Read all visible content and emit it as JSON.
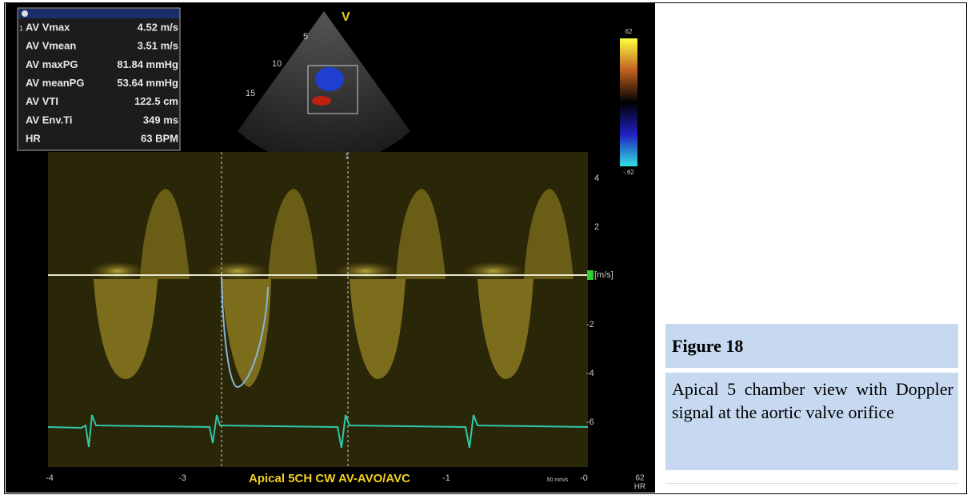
{
  "measurements": {
    "row_index": "1",
    "rows": [
      {
        "label": "AV Vmax",
        "value": "4.52 m/s"
      },
      {
        "label": "AV Vmean",
        "value": "3.51 m/s"
      },
      {
        "label": "AV maxPG",
        "value": "81.84 mmHg"
      },
      {
        "label": "AV meanPG",
        "value": "53.64 mmHg"
      },
      {
        "label": "AV VTI",
        "value": "122.5 cm"
      },
      {
        "label": "AV Env.Ti",
        "value": "349 ms"
      },
      {
        "label": "HR",
        "value": "63 BPM"
      }
    ]
  },
  "echo": {
    "marker": "V",
    "depth_marks": [
      "5",
      "10",
      "15"
    ],
    "cursor_label": "1",
    "color_scale": [
      "62",
      "-.62"
    ],
    "velocity_axis": [
      "4",
      "2",
      "[m/s]",
      "-2",
      "-4",
      "-6"
    ],
    "time_axis": [
      "-4",
      "-3",
      "-1",
      "-0"
    ],
    "view_label": "Apical 5CH CW AV-AVO/AVC",
    "sweep": "50 mm/s",
    "hr": "62",
    "hr_unit": "HR"
  },
  "caption": {
    "title": "Figure 18",
    "text": "Apical 5 chamber view with Doppler signal at the aortic valve orifice"
  }
}
